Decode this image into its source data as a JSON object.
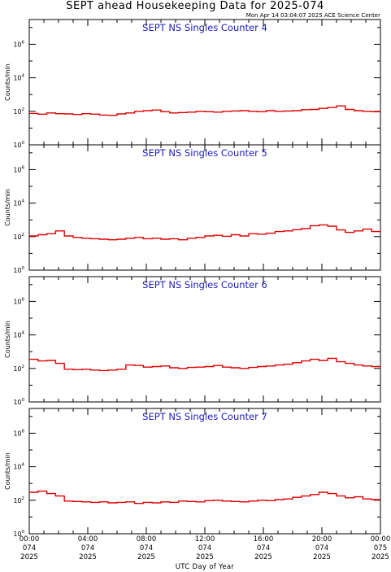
{
  "page": {
    "title": "SEPT ahead Housekeeping Data for 2025-074",
    "timestamp": "Mon Apr 14 03:04:07 2025 ACE Science Center",
    "xlabel": "UTC Day of Year"
  },
  "x_ticks": [
    {
      "time": "00:00",
      "doy": "074",
      "year": "2025"
    },
    {
      "time": "04:00",
      "doy": "074",
      "year": "2025"
    },
    {
      "time": "08:00",
      "doy": "074",
      "year": "2025"
    },
    {
      "time": "12:00",
      "doy": "074",
      "year": "2025"
    },
    {
      "time": "16:00",
      "doy": "074",
      "year": "2025"
    },
    {
      "time": "20:00",
      "doy": "074",
      "year": "2025"
    },
    {
      "time": "00:00",
      "doy": "075",
      "year": "2025"
    }
  ],
  "y_ticks": [
    {
      "base": "10",
      "exp": "0",
      "value": 1
    },
    {
      "base": "10",
      "exp": "2",
      "value": 100
    },
    {
      "base": "10",
      "exp": "4",
      "value": 10000
    },
    {
      "base": "10",
      "exp": "6",
      "value": 1000000
    }
  ],
  "colors": {
    "series": "#dd0000",
    "panel_title": "#2020c0",
    "axes": "#000000"
  },
  "chart_data": [
    {
      "type": "line",
      "title": "SEPT NS Singles Counter 4",
      "ylabel": "Counts/min",
      "xlim_hours": [
        0,
        24
      ],
      "ylim": [
        1,
        30000000
      ],
      "yscale": "log",
      "step": true,
      "x_hours": [
        0,
        0.6,
        1.2,
        1.8,
        2.4,
        3.0,
        3.6,
        4.2,
        4.8,
        5.4,
        6.0,
        6.6,
        7.2,
        7.8,
        8.4,
        9.0,
        9.6,
        10.2,
        10.8,
        11.4,
        12.0,
        12.6,
        13.2,
        13.8,
        14.4,
        15.0,
        15.6,
        16.2,
        16.8,
        17.4,
        18.0,
        18.6,
        19.2,
        19.8,
        20.4,
        21.0,
        21.6,
        22.2,
        22.8,
        23.4
      ],
      "values": [
        75,
        68,
        80,
        72,
        70,
        65,
        72,
        68,
        60,
        58,
        70,
        80,
        100,
        110,
        120,
        95,
        80,
        85,
        90,
        100,
        95,
        90,
        100,
        105,
        110,
        100,
        95,
        110,
        100,
        105,
        110,
        125,
        130,
        150,
        170,
        210,
        130,
        110,
        100,
        95
      ]
    },
    {
      "type": "line",
      "title": "SEPT NS Singles Counter 5",
      "ylabel": "Counts/min",
      "xlim_hours": [
        0,
        24
      ],
      "ylim": [
        1,
        30000000
      ],
      "yscale": "log",
      "step": true,
      "x_hours": [
        0,
        0.6,
        1.2,
        1.8,
        2.4,
        3.0,
        3.6,
        4.2,
        4.8,
        5.4,
        6.0,
        6.6,
        7.2,
        7.8,
        8.4,
        9.0,
        9.6,
        10.2,
        10.8,
        11.4,
        12.0,
        12.6,
        13.2,
        13.8,
        14.4,
        15.0,
        15.6,
        16.2,
        16.8,
        17.4,
        18.0,
        18.6,
        19.2,
        19.8,
        20.4,
        21.0,
        21.6,
        22.2,
        22.8,
        23.4
      ],
      "values": [
        110,
        130,
        150,
        220,
        110,
        90,
        80,
        75,
        70,
        65,
        70,
        80,
        90,
        75,
        80,
        70,
        75,
        65,
        80,
        90,
        110,
        120,
        105,
        130,
        110,
        150,
        140,
        160,
        200,
        220,
        260,
        300,
        450,
        500,
        420,
        250,
        180,
        220,
        280,
        200
      ]
    },
    {
      "type": "line",
      "title": "SEPT NS Singles Counter 6",
      "ylabel": "Counts/min",
      "xlim_hours": [
        0,
        24
      ],
      "ylim": [
        1,
        30000000
      ],
      "yscale": "log",
      "step": true,
      "x_hours": [
        0,
        0.6,
        1.2,
        1.8,
        2.4,
        3.0,
        3.6,
        4.2,
        4.8,
        5.4,
        6.0,
        6.6,
        7.2,
        7.8,
        8.4,
        9.0,
        9.6,
        10.2,
        10.8,
        11.4,
        12.0,
        12.6,
        13.2,
        13.8,
        14.4,
        15.0,
        15.6,
        16.2,
        16.8,
        17.4,
        18.0,
        18.6,
        19.2,
        19.8,
        20.4,
        21.0,
        21.6,
        22.2,
        22.8,
        23.4
      ],
      "values": [
        350,
        280,
        300,
        200,
        90,
        85,
        90,
        80,
        75,
        80,
        90,
        160,
        150,
        120,
        130,
        140,
        110,
        100,
        115,
        120,
        130,
        150,
        120,
        110,
        100,
        115,
        130,
        140,
        160,
        180,
        220,
        280,
        350,
        300,
        400,
        250,
        200,
        160,
        140,
        130
      ]
    },
    {
      "type": "line",
      "title": "SEPT NS Singles Counter 7",
      "ylabel": "Counts/min",
      "xlim_hours": [
        0,
        24
      ],
      "ylim": [
        1,
        30000000
      ],
      "yscale": "log",
      "step": true,
      "x_hours": [
        0,
        0.6,
        1.2,
        1.8,
        2.4,
        3.0,
        3.6,
        4.2,
        4.8,
        5.4,
        6.0,
        6.6,
        7.2,
        7.8,
        8.4,
        9.0,
        9.6,
        10.2,
        10.8,
        11.4,
        12.0,
        12.6,
        13.2,
        13.8,
        14.4,
        15.0,
        15.6,
        16.2,
        16.8,
        17.4,
        18.0,
        18.6,
        19.2,
        19.8,
        20.4,
        21.0,
        21.6,
        22.2,
        22.8,
        23.4
      ],
      "values": [
        300,
        350,
        250,
        180,
        90,
        85,
        80,
        75,
        80,
        70,
        75,
        80,
        65,
        75,
        70,
        80,
        75,
        90,
        85,
        80,
        95,
        100,
        90,
        85,
        80,
        90,
        100,
        95,
        110,
        120,
        150,
        180,
        220,
        300,
        250,
        180,
        140,
        160,
        120,
        110
      ]
    }
  ]
}
